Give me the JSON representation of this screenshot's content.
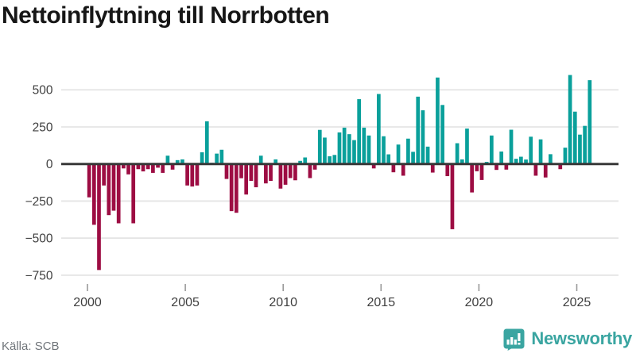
{
  "title": "Nettoinflyttning till Norrbotten",
  "footer": {
    "source_label": "Källa: SCB",
    "brand": "Newsworthy"
  },
  "colors": {
    "positive_bar": "#0aa09b",
    "negative_bar": "#9d0d43",
    "zero_axis": "#383838",
    "gridline": "#e4e4e4",
    "tick_mark": "#9a9a9a",
    "axis_label": "#3f3f3f",
    "source_text": "#70757a",
    "brand_teal": "#3aa5a1",
    "title_text": "#161616",
    "background": "#ffffff"
  },
  "chart_data": {
    "type": "bar",
    "title": "Nettoinflyttning till Norrbotten",
    "xlabel": "",
    "ylabel": "",
    "frequency": "quarterly",
    "start_period": "2000Q1",
    "end_period": "2025Q3",
    "x_tick_labels": [
      "2000",
      "2005",
      "2010",
      "2015",
      "2020",
      "2025"
    ],
    "y_ticks": [
      500,
      250,
      0,
      -250,
      -500,
      -750
    ],
    "y_tick_labels": [
      "500",
      "250",
      "0",
      "−250",
      "−500",
      "−750"
    ],
    "ylim": [
      -780,
      620
    ],
    "grid": true,
    "legend": "none",
    "values": [
      -225,
      -410,
      -715,
      -145,
      -345,
      -315,
      -400,
      -30,
      -70,
      -400,
      -35,
      -50,
      -35,
      -60,
      -25,
      -60,
      56,
      -38,
      26,
      31,
      -145,
      -152,
      -145,
      79,
      288,
      8,
      70,
      96,
      -101,
      -318,
      -329,
      -96,
      -206,
      -114,
      -157,
      56,
      -131,
      -114,
      31,
      -166,
      -140,
      -95,
      -110,
      21,
      44,
      -95,
      -38,
      230,
      178,
      52,
      61,
      213,
      245,
      201,
      161,
      437,
      245,
      192,
      -30,
      472,
      187,
      65,
      -56,
      131,
      -79,
      171,
      82,
      454,
      362,
      117,
      -58,
      583,
      398,
      -82,
      -440,
      140,
      31,
      239,
      -192,
      -49,
      -108,
      14,
      192,
      -40,
      84,
      -38,
      231,
      35,
      49,
      30,
      184,
      -79,
      166,
      -91,
      66,
      4,
      -35,
      110,
      600,
      353,
      198,
      257,
      565
    ]
  }
}
